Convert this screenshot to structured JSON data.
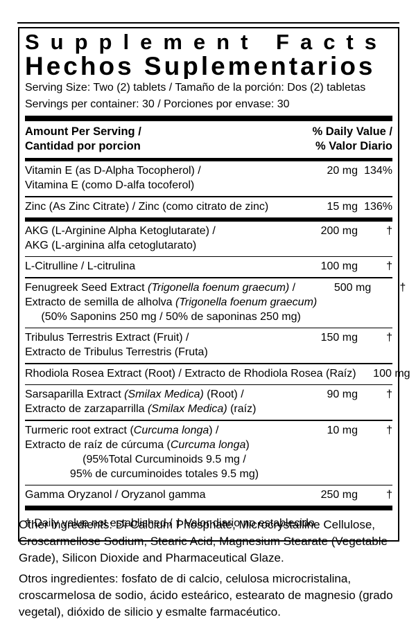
{
  "label": {
    "title_en": "Supplement Facts",
    "title_es": "Hechos Suplementarios",
    "serving_size": "Serving Size: Two (2) tablets / Tamaño de la porción: Dos (2) tabletas",
    "servings_per_container": "Servings per container: 30 / Porciones por envase: 30",
    "header": {
      "amount_line1": "Amount Per Serving /",
      "amount_line2": "Cantidad por porcion",
      "dv_line1": "% Daily Value /",
      "dv_line2": "% Valor Diario"
    },
    "rows": [
      {
        "name_lines": [
          {
            "align": "left",
            "segments": [
              {
                "text": "Vitamin E (as D-Alpha Tocopherol) /"
              }
            ]
          },
          {
            "align": "left",
            "segments": [
              {
                "text": "Vitamina E (como D-alfa tocoferol)"
              }
            ]
          }
        ],
        "amount": "20 mg",
        "dv": "134%",
        "separator_after": "thin"
      },
      {
        "name_lines": [
          {
            "align": "left",
            "segments": [
              {
                "text": "Zinc (As Zinc Citrate) / Zinc (como citrato de zinc)"
              }
            ]
          }
        ],
        "amount": "15 mg",
        "dv": "136%",
        "separator_after": "thick"
      },
      {
        "name_lines": [
          {
            "align": "left",
            "segments": [
              {
                "text": "AKG (L-Arginine Alpha Ketoglutarate) /"
              }
            ]
          },
          {
            "align": "left",
            "segments": [
              {
                "text": "AKG (L-arginina alfa cetoglutarato)"
              }
            ]
          }
        ],
        "amount": "200 mg",
        "dv": "†",
        "separator_after": "thin"
      },
      {
        "name_lines": [
          {
            "align": "left",
            "segments": [
              {
                "text": "L-Citrulline / L-citrulina"
              }
            ]
          }
        ],
        "amount": "100 mg",
        "dv": "†",
        "separator_after": "thin"
      },
      {
        "name_lines": [
          {
            "align": "left",
            "segments": [
              {
                "text": "Fenugreek Seed Extract "
              },
              {
                "text": "(Trigonella foenum graecum)",
                "italic": true
              },
              {
                "text": " /"
              }
            ]
          },
          {
            "align": "left",
            "segments": [
              {
                "text": "Extracto de semilla de alholva "
              },
              {
                "text": "(Trigonella foenum graecum)",
                "italic": true
              }
            ]
          },
          {
            "align": "center",
            "segments": [
              {
                "text": "(50% Saponins 250 mg / 50% de saponinas 250 mg)"
              }
            ]
          }
        ],
        "amount": "500 mg",
        "dv": "†",
        "separator_after": "thin"
      },
      {
        "name_lines": [
          {
            "align": "left",
            "segments": [
              {
                "text": "Tribulus Terrestris Extract (Fruit) /"
              }
            ]
          },
          {
            "align": "left",
            "segments": [
              {
                "text": "Extracto de Tribulus Terrestris (Fruta)"
              }
            ]
          }
        ],
        "amount": "150 mg",
        "dv": "†",
        "separator_after": "thin"
      },
      {
        "name_lines": [
          {
            "align": "left",
            "segments": [
              {
                "text": "Rhodiola Rosea Extract (Root) / Extracto de Rhodiola Rosea (Raíz)"
              }
            ]
          }
        ],
        "amount": "100 mg",
        "dv": "†",
        "separator_after": "thin"
      },
      {
        "name_lines": [
          {
            "align": "left",
            "segments": [
              {
                "text": "Sarsaparilla Extract "
              },
              {
                "text": "(Smilax Medica)",
                "italic": true
              },
              {
                "text": " (Root) /"
              }
            ]
          },
          {
            "align": "left",
            "segments": [
              {
                "text": "Extracto de zarzaparrilla "
              },
              {
                "text": "(Smilax Medica)",
                "italic": true
              },
              {
                "text": " (raíz)"
              }
            ]
          }
        ],
        "amount": "90 mg",
        "dv": "†",
        "separator_after": "thin"
      },
      {
        "name_lines": [
          {
            "align": "left",
            "segments": [
              {
                "text": "Turmeric root extract ("
              },
              {
                "text": "Curcuma longa",
                "italic": true
              },
              {
                "text": ") /"
              }
            ]
          },
          {
            "align": "left",
            "segments": [
              {
                "text": "Extracto de raíz de cúrcuma ("
              },
              {
                "text": "Curcuma longa",
                "italic": true
              },
              {
                "text": ")"
              }
            ]
          },
          {
            "align": "center",
            "segments": [
              {
                "text": "(95%Total Curcuminoids 9.5 mg /"
              }
            ]
          },
          {
            "align": "center",
            "segments": [
              {
                "text": "95% de curcuminoides totales 9.5 mg)"
              }
            ]
          }
        ],
        "amount": "10 mg",
        "dv": "†",
        "separator_after": "thin"
      },
      {
        "name_lines": [
          {
            "align": "left",
            "segments": [
              {
                "text": "Gamma Oryzanol / Oryzanol gamma"
              }
            ]
          }
        ],
        "amount": "250 mg",
        "dv": "†",
        "separator_after": "none"
      }
    ],
    "footnote": "† Daily value not established  / † Valor diario no establecido",
    "other_ingredients_en": "Other ingredients: Di Calcium Phosphate, Microcrystalline Cellulose, Croscarmellose Sodium, Stearic Acid, Magnesium Stearate (Vegetable Grade), Silicon Dioxide and Pharmaceutical Glaze.",
    "other_ingredients_es": "Otros ingredientes: fosfato de di calcio, celulosa microcristalina, croscarmelosa de sodio, ácido esteárico, estearato de magnesio (grado vegetal), dióxido de silicio y esmalte farmacéutico.",
    "colors": {
      "ink": "#000000",
      "background": "#ffffff"
    }
  }
}
